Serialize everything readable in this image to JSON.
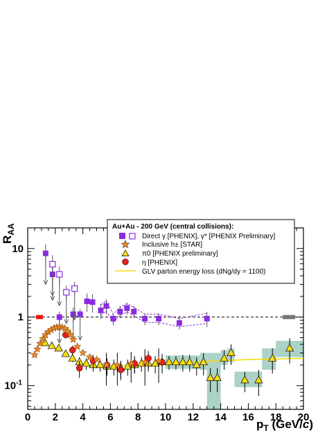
{
  "chart_data": {
    "type": "scatter",
    "xlabel": "p_T (GeV/c)",
    "ylabel": "R_AA",
    "xlim": [
      0,
      20
    ],
    "ylim": [
      0.045,
      20
    ],
    "yscale": "log",
    "x_ticks": [
      0,
      2,
      4,
      6,
      8,
      10,
      12,
      14,
      16,
      18,
      20
    ],
    "y_tick_labels": [
      "10^-1",
      "1",
      "10"
    ],
    "reference_line": 1,
    "legend": {
      "title": "Au+Au - 200 GeV (central collisions):",
      "position": "top-right",
      "entries": [
        "Direct γ [PHENIX], γ* [PHENIX Preliminary]",
        "Inclusive h± [STAR]",
        "π0 [PHENIX preliminary]",
        "η [PHENIX]",
        "GLV parton energy loss (dNg/dy = 1100)"
      ]
    },
    "series": [
      {
        "name": "Direct γ [PHENIX]",
        "marker": "filled-square",
        "color": "#8b2be2",
        "x": [
          1.3,
          1.8,
          2.3,
          3.3,
          3.8,
          4.3,
          4.7,
          5.3,
          5.7,
          6.2,
          6.7,
          7.2,
          7.7,
          8.5,
          9.5,
          11.0,
          13.0
        ],
        "y": [
          8.5,
          4.2,
          1.0,
          1.1,
          1.1,
          1.7,
          1.65,
          1.25,
          1.45,
          0.95,
          1.2,
          1.35,
          1.2,
          0.95,
          0.95,
          0.82,
          0.95
        ],
        "yerr": [
          0.35,
          0.3,
          0.2,
          0.25,
          0.2,
          0.3,
          0.3,
          0.25,
          0.25,
          0.2,
          0.2,
          0.2,
          0.2,
          0.2,
          0.2,
          0.2,
          0.25
        ]
      },
      {
        "name": "γ* [PHENIX Preliminary]",
        "marker": "open-square",
        "color": "#8b2be2",
        "x": [
          1.8,
          2.3,
          2.8,
          3.4
        ],
        "y": [
          5.9,
          4.2,
          2.3,
          2.6
        ],
        "yerr": [
          0.35,
          0.3,
          0.25,
          0.25
        ]
      },
      {
        "name": "Inclusive h± [STAR]",
        "marker": "star",
        "color": "#e8862a",
        "x": [
          0.5,
          0.7,
          0.9,
          1.1,
          1.3,
          1.5,
          1.7,
          1.9,
          2.1,
          2.3,
          2.5,
          2.7,
          2.9,
          3.1,
          3.3,
          3.6,
          4.0,
          4.5,
          5.0,
          5.7,
          6.5,
          7.5,
          8.5,
          9.5
        ],
        "y": [
          0.28,
          0.34,
          0.41,
          0.48,
          0.55,
          0.61,
          0.65,
          0.69,
          0.71,
          0.72,
          0.71,
          0.68,
          0.62,
          0.55,
          0.47,
          0.37,
          0.3,
          0.26,
          0.24,
          0.2,
          0.2,
          0.21,
          0.22,
          0.23
        ],
        "yerr": [
          0.04,
          0.04,
          0.04,
          0.04,
          0.04,
          0.04,
          0.04,
          0.04,
          0.04,
          0.04,
          0.04,
          0.04,
          0.05,
          0.05,
          0.05,
          0.06,
          0.07,
          0.08,
          0.09,
          0.1,
          0.1,
          0.1,
          0.12,
          0.12
        ]
      },
      {
        "name": "π0 [PHENIX preliminary]",
        "marker": "triangle",
        "color": "#f5dc14",
        "x": [
          1.25,
          1.75,
          2.25,
          2.75,
          3.25,
          3.75,
          4.25,
          4.75,
          5.25,
          5.75,
          6.25,
          6.75,
          7.25,
          7.75,
          8.25,
          8.75,
          9.25,
          9.75,
          10.25,
          10.75,
          11.25,
          11.75,
          12.25,
          12.75,
          13.25,
          13.75,
          14.25,
          14.75,
          15.75,
          16.75,
          17.75,
          19.0
        ],
        "y": [
          0.42,
          0.38,
          0.35,
          0.29,
          0.25,
          0.22,
          0.21,
          0.2,
          0.2,
          0.19,
          0.19,
          0.18,
          0.19,
          0.2,
          0.21,
          0.21,
          0.21,
          0.22,
          0.22,
          0.22,
          0.22,
          0.22,
          0.2,
          0.22,
          0.13,
          0.13,
          0.25,
          0.3,
          0.12,
          0.12,
          0.25,
          0.35
        ],
        "yerr": [
          0.03,
          0.03,
          0.03,
          0.03,
          0.03,
          0.04,
          0.04,
          0.04,
          0.04,
          0.05,
          0.05,
          0.05,
          0.05,
          0.05,
          0.05,
          0.05,
          0.06,
          0.06,
          0.05,
          0.05,
          0.06,
          0.06,
          0.06,
          0.08,
          0.05,
          0.05,
          0.08,
          0.1,
          0.04,
          0.05,
          0.1,
          0.14
        ],
        "syst_boxes": [
          {
            "x0": 10.0,
            "x1": 12.5,
            "ylo": 0.175,
            "yhi": 0.275
          },
          {
            "x0": 12.5,
            "x1": 13.0,
            "ylo": 0.17,
            "yhi": 0.3
          },
          {
            "x0": 13.0,
            "x1": 13.5,
            "ylo": 0.045,
            "yhi": 0.3
          },
          {
            "x0": 13.5,
            "x1": 14.0,
            "ylo": 0.045,
            "yhi": 0.3
          },
          {
            "x0": 14.0,
            "x1": 14.5,
            "ylo": 0.2,
            "yhi": 0.33
          },
          {
            "x0": 14.5,
            "x1": 15.0,
            "ylo": 0.22,
            "yhi": 0.35
          },
          {
            "x0": 15.0,
            "x1": 17.0,
            "ylo": 0.095,
            "yhi": 0.16
          },
          {
            "x0": 17.0,
            "x1": 18.0,
            "ylo": 0.17,
            "yhi": 0.35
          },
          {
            "x0": 18.0,
            "x1": 20.0,
            "ylo": 0.26,
            "yhi": 0.45
          }
        ]
      },
      {
        "name": "η [PHENIX]",
        "marker": "circle",
        "color": "#e81e1e",
        "x": [
          2.75,
          3.25,
          3.75,
          4.75,
          5.75,
          6.75,
          7.75,
          8.75,
          9.75
        ],
        "y": [
          0.55,
          0.33,
          0.18,
          0.23,
          0.2,
          0.17,
          0.21,
          0.25,
          0.22
        ],
        "yerr": [
          0.06,
          0.05,
          0.05,
          0.05,
          0.05,
          0.05,
          0.06,
          0.07,
          0.07
        ]
      },
      {
        "name": "GLV parton energy loss (dNg/dy = 1100)",
        "type": "line",
        "color": "#f5dc14",
        "x": [
          4.5,
          6,
          8,
          10,
          12,
          14,
          16,
          18,
          20
        ],
        "y": [
          0.19,
          0.195,
          0.2,
          0.21,
          0.22,
          0.23,
          0.24,
          0.245,
          0.25
        ]
      }
    ],
    "normalization_boxes": [
      {
        "x0": 0.6,
        "x1": 1.1,
        "color": "#ee1111"
      },
      {
        "x0": 18.5,
        "x1": 19.4,
        "color": "#777777"
      }
    ]
  }
}
